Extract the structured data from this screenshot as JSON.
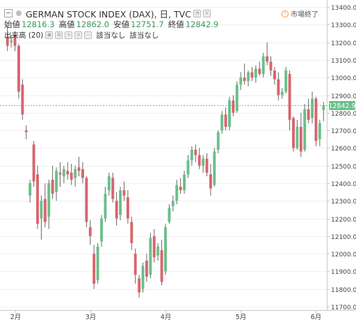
{
  "header": {
    "title": "GERMAN STOCK INDEX (DAX), 日, TVC",
    "status_text": "市場終了",
    "ohlc": [
      {
        "label": "始値",
        "value": "12816.3"
      },
      {
        "label": "高値",
        "value": "12862.0"
      },
      {
        "label": "安値",
        "value": "12751.7"
      },
      {
        "label": "終値",
        "value": "12842.9"
      }
    ],
    "volume_label": "出来高 (20)",
    "volume_values": [
      "該当なし",
      "該当なし"
    ]
  },
  "colors": {
    "up": "#6bbf8a",
    "down": "#d9646e",
    "wick": "#666666",
    "accent": "#3a9a5a",
    "price_line": "#6bbf8a"
  },
  "chart_data": {
    "type": "candlestick",
    "title": "GERMAN STOCK INDEX (DAX), 日, TVC",
    "ylim": [
      11680,
      13440
    ],
    "y_ticks": [
      11700,
      11800,
      11900,
      12000,
      12100,
      12200,
      12300,
      12400,
      12500,
      12600,
      12700,
      12800,
      12900,
      13000,
      13100,
      13200,
      13300,
      13400
    ],
    "x_tick_labels": [
      {
        "label": "2月",
        "index": 2
      },
      {
        "label": "3月",
        "index": 22
      },
      {
        "label": "4月",
        "index": 42
      },
      {
        "label": "5月",
        "index": 62
      },
      {
        "label": "6月",
        "index": 82
      }
    ],
    "last_price": 12842.9,
    "last_price_label": "12842.9",
    "candles": [
      [
        13232,
        13290,
        13150,
        13180
      ],
      [
        13200,
        13240,
        13170,
        13210
      ],
      [
        13240,
        13260,
        13150,
        13180
      ],
      [
        13180,
        13190,
        12880,
        12920
      ],
      [
        12960,
        12990,
        12760,
        12790
      ],
      [
        12700,
        12730,
        12650,
        12690
      ],
      [
        12330,
        12420,
        12290,
        12400
      ],
      [
        12620,
        12640,
        12380,
        12410
      ],
      [
        12450,
        12500,
        12140,
        12170
      ],
      [
        12200,
        12330,
        12080,
        12300
      ],
      [
        12310,
        12400,
        12150,
        12180
      ],
      [
        12210,
        12420,
        12140,
        12400
      ],
      [
        12420,
        12500,
        12310,
        12340
      ],
      [
        12350,
        12490,
        12300,
        12470
      ],
      [
        12460,
        12520,
        12380,
        12450
      ],
      [
        12440,
        12500,
        12400,
        12480
      ],
      [
        12470,
        12520,
        12420,
        12450
      ],
      [
        12460,
        12510,
        12390,
        12420
      ],
      [
        12430,
        12500,
        12380,
        12480
      ],
      [
        12490,
        12550,
        12440,
        12470
      ],
      [
        12480,
        12520,
        12400,
        12430
      ],
      [
        12430,
        12440,
        12150,
        12180
      ],
      [
        12150,
        12190,
        12050,
        12100
      ],
      [
        12000,
        12050,
        11800,
        11830
      ],
      [
        11850,
        12060,
        11830,
        12040
      ],
      [
        12070,
        12220,
        12040,
        12200
      ],
      [
        12200,
        12380,
        12180,
        12340
      ],
      [
        12360,
        12460,
        12330,
        12440
      ],
      [
        12430,
        12460,
        12290,
        12310
      ],
      [
        12300,
        12350,
        12160,
        12200
      ],
      [
        12220,
        12380,
        12190,
        12360
      ],
      [
        12360,
        12410,
        12300,
        12330
      ],
      [
        12320,
        12360,
        12170,
        12200
      ],
      [
        12180,
        12210,
        12020,
        12060
      ],
      [
        12000,
        12030,
        11830,
        11880
      ],
      [
        11860,
        11880,
        11750,
        11780
      ],
      [
        11800,
        11950,
        11780,
        11930
      ],
      [
        11960,
        12000,
        11840,
        11870
      ],
      [
        11880,
        12120,
        11860,
        12090
      ],
      [
        12100,
        12140,
        11950,
        11980
      ],
      [
        11990,
        12060,
        11960,
        12040
      ],
      [
        12020,
        12080,
        11820,
        11840
      ],
      [
        11900,
        12170,
        11880,
        12150
      ],
      [
        12180,
        12280,
        12170,
        12260
      ],
      [
        12270,
        12330,
        12240,
        12300
      ],
      [
        12300,
        12420,
        12280,
        12390
      ],
      [
        12380,
        12430,
        12340,
        12360
      ],
      [
        12360,
        12470,
        12340,
        12450
      ],
      [
        12450,
        12560,
        12430,
        12530
      ],
      [
        12530,
        12610,
        12500,
        12590
      ],
      [
        12590,
        12620,
        12520,
        12560
      ],
      [
        12560,
        12600,
        12480,
        12500
      ],
      [
        12500,
        12560,
        12460,
        12540
      ],
      [
        12540,
        12570,
        12440,
        12460
      ],
      [
        12450,
        12510,
        12330,
        12370
      ],
      [
        12390,
        12600,
        12380,
        12580
      ],
      [
        12590,
        12700,
        12570,
        12690
      ],
      [
        12700,
        12810,
        12680,
        12790
      ],
      [
        12790,
        12830,
        12700,
        12720
      ],
      [
        12720,
        12890,
        12700,
        12870
      ],
      [
        12870,
        12900,
        12780,
        12800
      ],
      [
        12810,
        12980,
        12800,
        12960
      ],
      [
        12960,
        13030,
        12930,
        13000
      ],
      [
        13000,
        13080,
        12960,
        12980
      ],
      [
        12980,
        13040,
        12950,
        13030
      ],
      [
        13030,
        13060,
        12980,
        13000
      ],
      [
        13000,
        13070,
        12970,
        13050
      ],
      [
        13050,
        13090,
        13010,
        13020
      ],
      [
        13020,
        13140,
        13000,
        13120
      ],
      [
        13120,
        13200,
        13070,
        13090
      ],
      [
        13090,
        13120,
        13010,
        13040
      ],
      [
        13040,
        13060,
        12960,
        12990
      ],
      [
        12990,
        13030,
        12870,
        12900
      ],
      [
        12900,
        12940,
        12880,
        12920
      ],
      [
        12920,
        13060,
        12910,
        13040
      ],
      [
        13020,
        13040,
        12700,
        12760
      ],
      [
        12770,
        12780,
        12580,
        12600
      ],
      [
        12600,
        12760,
        12590,
        12720
      ],
      [
        12720,
        12800,
        12550,
        12580
      ],
      [
        12590,
        12850,
        12580,
        12820
      ],
      [
        12820,
        12880,
        12740,
        12760
      ],
      [
        12770,
        12920,
        12740,
        12880
      ],
      [
        12880,
        12890,
        12610,
        12640
      ],
      [
        12650,
        12760,
        12610,
        12740
      ],
      [
        12816.3,
        12862.0,
        12751.7,
        12842.9
      ]
    ]
  }
}
